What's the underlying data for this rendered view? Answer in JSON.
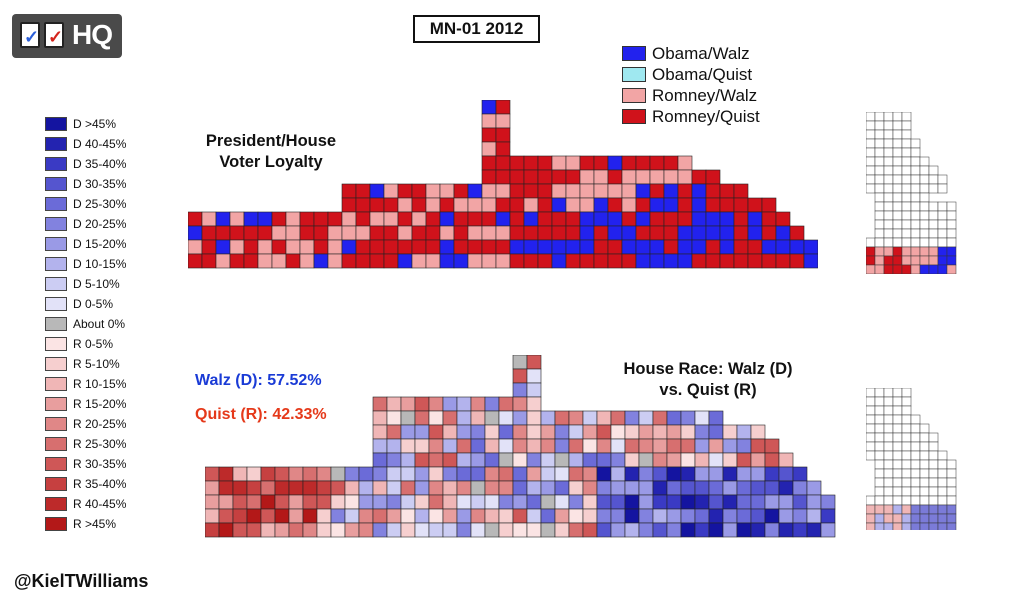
{
  "logo": {
    "text": "HQ"
  },
  "title": "MN-01 2012",
  "top_legend": [
    {
      "label": "Obama/Walz",
      "color": "#2222ee"
    },
    {
      "label": "Obama/Quist",
      "color": "#9fe8f0"
    },
    {
      "label": "Romney/Walz",
      "color": "#f2a5a5"
    },
    {
      "label": "Romney/Quist",
      "color": "#d0121b"
    }
  ],
  "side_legend": [
    {
      "label": "D >45%",
      "color": "#1414a0"
    },
    {
      "label": "D 40-45%",
      "color": "#2323b0"
    },
    {
      "label": "D 35-40%",
      "color": "#3a3ac4"
    },
    {
      "label": "D 30-35%",
      "color": "#5555cf"
    },
    {
      "label": "D 25-30%",
      "color": "#6b6bd8"
    },
    {
      "label": "D 20-25%",
      "color": "#8282df"
    },
    {
      "label": "D 15-20%",
      "color": "#9a9ae6"
    },
    {
      "label": "D 10-15%",
      "color": "#b3b3ed"
    },
    {
      "label": "D 5-10%",
      "color": "#cccdf3"
    },
    {
      "label": "D 0-5%",
      "color": "#e2e2f8"
    },
    {
      "label": "About 0%",
      "color": "#b8b8b8"
    },
    {
      "label": "R 0-5%",
      "color": "#fbe4e4"
    },
    {
      "label": "R 5-10%",
      "color": "#f6cfcf"
    },
    {
      "label": "R 10-15%",
      "color": "#f0b6b6"
    },
    {
      "label": "R 15-20%",
      "color": "#e89e9e"
    },
    {
      "label": "R 20-25%",
      "color": "#e08787"
    },
    {
      "label": "R 25-30%",
      "color": "#d76f6f"
    },
    {
      "label": "R 30-35%",
      "color": "#cf5757"
    },
    {
      "label": "R 35-40%",
      "color": "#c64040"
    },
    {
      "label": "R 40-45%",
      "color": "#bd2a2a"
    },
    {
      "label": "R >45%",
      "color": "#b31818"
    }
  ],
  "president_heading": {
    "line1": "President/House",
    "line2": "Voter Loyalty"
  },
  "house_heading": {
    "line1": "House Race: Walz (D)",
    "line2": "vs. Quist (R)"
  },
  "walz_result": "Walz (D): 57.52%",
  "quist_result": "Quist (R): 42.33%",
  "credit": "@KielTWilliams"
}
